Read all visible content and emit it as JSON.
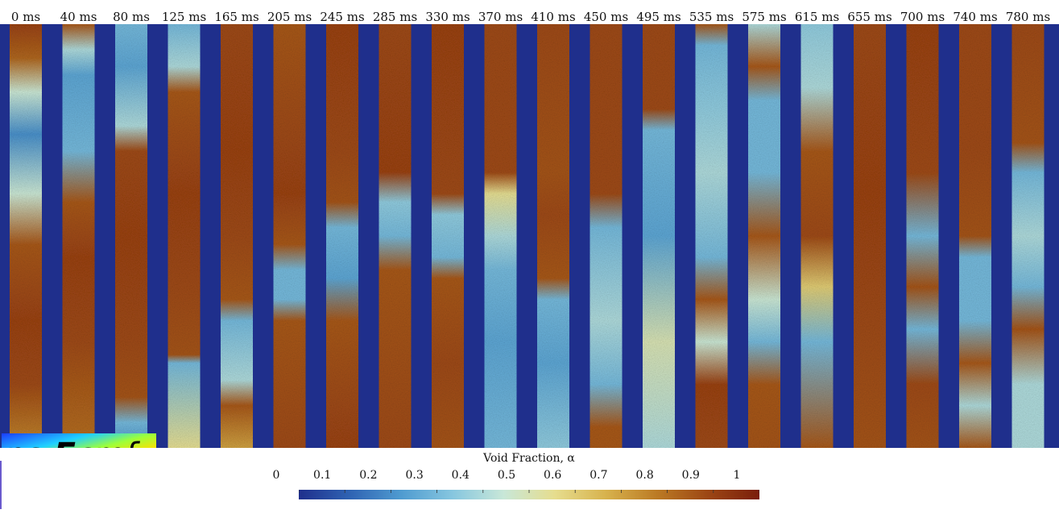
{
  "time_labels": [
    "0 ms",
    "40 ms",
    "80 ms",
    "125 ms",
    "165 ms",
    "205 ms",
    "245 ms",
    "285 ms",
    "330 ms",
    "370 ms",
    "410 ms",
    "450 ms",
    "495 ms",
    "535 ms",
    "575 ms",
    "615 ms",
    "655 ms",
    "700 ms",
    "740 ms",
    "780 ms"
  ],
  "colorbar": {
    "title": "Void Fraction, α",
    "ticks": [
      "0",
      "0.1",
      "0.2",
      "0.3",
      "0.4",
      "0.5",
      "0.6",
      "0.7",
      "0.8",
      "0.9",
      "1"
    ],
    "colors": [
      "#1f2f8c",
      "#2f63b3",
      "#4f9bd0",
      "#86c6df",
      "#c8e7d8",
      "#e6dd8e",
      "#d7b24d",
      "#bb7a24",
      "#9c4614",
      "#7a1e0b"
    ]
  },
  "logo": {
    "text_ns": "ns-",
    "text_e": "E",
    "text_cmf": "cmf"
  },
  "background_color": "#1f2f8c",
  "columns": [
    {
      "bands": [
        [
          0,
          0.9
        ],
        [
          0.08,
          0.82
        ],
        [
          0.16,
          0.45
        ],
        [
          0.26,
          0.2
        ],
        [
          0.4,
          0.45
        ],
        [
          0.52,
          0.85
        ],
        [
          0.7,
          0.9
        ],
        [
          0.85,
          0.88
        ],
        [
          1,
          0.75
        ]
      ]
    },
    {
      "bands": [
        [
          0,
          0.85
        ],
        [
          0.06,
          0.4
        ],
        [
          0.12,
          0.25
        ],
        [
          0.3,
          0.3
        ],
        [
          0.42,
          0.85
        ],
        [
          0.55,
          0.9
        ],
        [
          0.75,
          0.88
        ],
        [
          1,
          0.8
        ]
      ]
    },
    {
      "bands": [
        [
          0,
          0.3
        ],
        [
          0.1,
          0.25
        ],
        [
          0.24,
          0.4
        ],
        [
          0.3,
          0.88
        ],
        [
          0.5,
          0.9
        ],
        [
          0.75,
          0.88
        ],
        [
          0.88,
          0.86
        ],
        [
          0.94,
          0.3
        ],
        [
          1,
          0.2
        ]
      ]
    },
    {
      "bands": [
        [
          0,
          0.3
        ],
        [
          0.1,
          0.4
        ],
        [
          0.16,
          0.85
        ],
        [
          0.4,
          0.9
        ],
        [
          0.62,
          0.88
        ],
        [
          0.78,
          0.86
        ],
        [
          0.8,
          0.3
        ],
        [
          1,
          0.55
        ]
      ]
    },
    {
      "bands": [
        [
          0,
          0.88
        ],
        [
          0.3,
          0.9
        ],
        [
          0.5,
          0.88
        ],
        [
          0.65,
          0.85
        ],
        [
          0.7,
          0.3
        ],
        [
          0.84,
          0.4
        ],
        [
          0.9,
          0.85
        ],
        [
          1,
          0.7
        ]
      ]
    },
    {
      "bands": [
        [
          0,
          0.85
        ],
        [
          0.4,
          0.9
        ],
        [
          0.52,
          0.85
        ],
        [
          0.58,
          0.3
        ],
        [
          0.65,
          0.3
        ],
        [
          0.7,
          0.85
        ],
        [
          1,
          0.88
        ]
      ]
    },
    {
      "bands": [
        [
          0,
          0.9
        ],
        [
          0.3,
          0.88
        ],
        [
          0.42,
          0.86
        ],
        [
          0.48,
          0.3
        ],
        [
          0.6,
          0.25
        ],
        [
          0.7,
          0.85
        ],
        [
          1,
          0.9
        ]
      ]
    },
    {
      "bands": [
        [
          0,
          0.88
        ],
        [
          0.35,
          0.9
        ],
        [
          0.42,
          0.35
        ],
        [
          0.5,
          0.3
        ],
        [
          0.58,
          0.85
        ],
        [
          1,
          0.88
        ]
      ]
    },
    {
      "bands": [
        [
          0,
          0.9
        ],
        [
          0.4,
          0.88
        ],
        [
          0.45,
          0.35
        ],
        [
          0.55,
          0.3
        ],
        [
          0.6,
          0.85
        ],
        [
          0.8,
          0.88
        ],
        [
          1,
          0.86
        ]
      ]
    },
    {
      "bands": [
        [
          0,
          0.88
        ],
        [
          0.35,
          0.88
        ],
        [
          0.4,
          0.55
        ],
        [
          0.5,
          0.4
        ],
        [
          0.58,
          0.3
        ],
        [
          0.75,
          0.25
        ],
        [
          1,
          0.3
        ]
      ]
    },
    {
      "bands": [
        [
          0,
          0.88
        ],
        [
          0.35,
          0.86
        ],
        [
          0.45,
          0.88
        ],
        [
          0.6,
          0.85
        ],
        [
          0.65,
          0.3
        ],
        [
          0.8,
          0.25
        ],
        [
          1,
          0.35
        ]
      ]
    },
    {
      "bands": [
        [
          0,
          0.88
        ],
        [
          0.4,
          0.88
        ],
        [
          0.48,
          0.3
        ],
        [
          0.7,
          0.4
        ],
        [
          0.85,
          0.3
        ],
        [
          0.95,
          0.85
        ],
        [
          1,
          0.85
        ]
      ]
    },
    {
      "bands": [
        [
          0,
          0.88
        ],
        [
          0.2,
          0.88
        ],
        [
          0.25,
          0.3
        ],
        [
          0.5,
          0.25
        ],
        [
          0.75,
          0.5
        ],
        [
          1,
          0.4
        ]
      ]
    },
    {
      "bands": [
        [
          0,
          0.85
        ],
        [
          0.05,
          0.3
        ],
        [
          0.2,
          0.35
        ],
        [
          0.35,
          0.4
        ],
        [
          0.55,
          0.3
        ],
        [
          0.65,
          0.85
        ],
        [
          0.75,
          0.45
        ],
        [
          0.85,
          0.9
        ],
        [
          1,
          0.88
        ]
      ]
    },
    {
      "bands": [
        [
          0,
          0.4
        ],
        [
          0.1,
          0.85
        ],
        [
          0.18,
          0.3
        ],
        [
          0.35,
          0.3
        ],
        [
          0.5,
          0.85
        ],
        [
          0.65,
          0.45
        ],
        [
          0.75,
          0.3
        ],
        [
          0.85,
          0.85
        ],
        [
          1,
          0.86
        ]
      ]
    },
    {
      "bands": [
        [
          0,
          0.35
        ],
        [
          0.15,
          0.4
        ],
        [
          0.3,
          0.85
        ],
        [
          0.5,
          0.88
        ],
        [
          0.62,
          0.6
        ],
        [
          0.75,
          0.3
        ],
        [
          1,
          0.85
        ]
      ]
    },
    {
      "bands": [
        [
          0,
          0.88
        ],
        [
          0.4,
          0.9
        ],
        [
          0.7,
          0.88
        ],
        [
          1,
          0.86
        ]
      ]
    },
    {
      "bands": [
        [
          0,
          0.9
        ],
        [
          0.35,
          0.88
        ],
        [
          0.5,
          0.3
        ],
        [
          0.62,
          0.86
        ],
        [
          0.72,
          0.3
        ],
        [
          0.85,
          0.88
        ],
        [
          1,
          0.86
        ]
      ]
    },
    {
      "bands": [
        [
          0,
          0.88
        ],
        [
          0.3,
          0.88
        ],
        [
          0.5,
          0.86
        ],
        [
          0.55,
          0.3
        ],
        [
          0.7,
          0.3
        ],
        [
          0.8,
          0.85
        ],
        [
          0.9,
          0.4
        ],
        [
          1,
          0.85
        ]
      ]
    },
    {
      "bands": [
        [
          0,
          0.88
        ],
        [
          0.28,
          0.86
        ],
        [
          0.35,
          0.3
        ],
        [
          0.5,
          0.4
        ],
        [
          0.62,
          0.3
        ],
        [
          0.72,
          0.86
        ],
        [
          0.85,
          0.4
        ],
        [
          1,
          0.4
        ]
      ]
    }
  ]
}
